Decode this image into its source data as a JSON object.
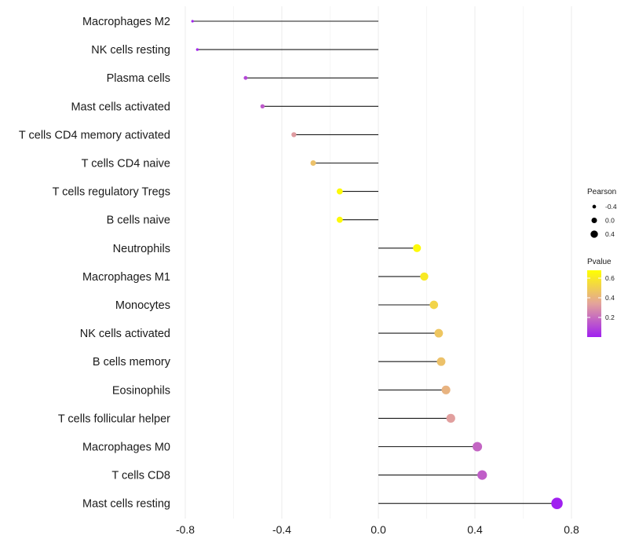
{
  "chart_data": {
    "type": "lollipop",
    "title": "",
    "xlabel": "",
    "ylabel": "",
    "xlim": [
      -0.8,
      0.8
    ],
    "xticks": [
      -0.8,
      -0.4,
      0.0,
      0.4,
      0.8
    ],
    "xtick_labels": [
      "-0.8",
      "-0.4",
      "0.0",
      "0.4",
      "0.8"
    ],
    "categories": [
      "Macrophages M2",
      "NK cells resting",
      "Plasma cells",
      "Mast cells activated",
      "T cells CD4 memory activated",
      "T cells CD4 naive",
      "T cells regulatory  Tregs ",
      "B cells naive",
      "Neutrophils",
      "Macrophages M1",
      "Monocytes",
      "NK cells activated",
      "B cells memory",
      "Eosinophils",
      "T cells follicular helper",
      "Macrophages M0",
      "T cells CD8",
      "Mast cells resting"
    ],
    "pearson": [
      -0.77,
      -0.75,
      -0.55,
      -0.48,
      -0.35,
      -0.27,
      -0.16,
      -0.16,
      0.16,
      0.19,
      0.23,
      0.25,
      0.26,
      0.28,
      0.3,
      0.41,
      0.43,
      0.74
    ],
    "pvalue": [
      0.01,
      0.02,
      0.1,
      0.15,
      0.32,
      0.45,
      0.66,
      0.66,
      0.66,
      0.6,
      0.52,
      0.47,
      0.45,
      0.4,
      0.33,
      0.18,
      0.16,
      0.0
    ],
    "legend": {
      "size": {
        "title": "Pearson",
        "labels": [
          "-0.4",
          "0.0",
          "0.4"
        ],
        "values": [
          -0.4,
          0.0,
          0.4
        ]
      },
      "color": {
        "title": "Pvalue",
        "labels": [
          "0.6",
          "0.4",
          "0.2"
        ],
        "values": [
          0.6,
          0.4,
          0.2
        ],
        "range": [
          0.0,
          0.68
        ],
        "low_color": "#a020f0",
        "mid_color": "#e3a39b",
        "high_color": "#ffff00"
      }
    }
  }
}
